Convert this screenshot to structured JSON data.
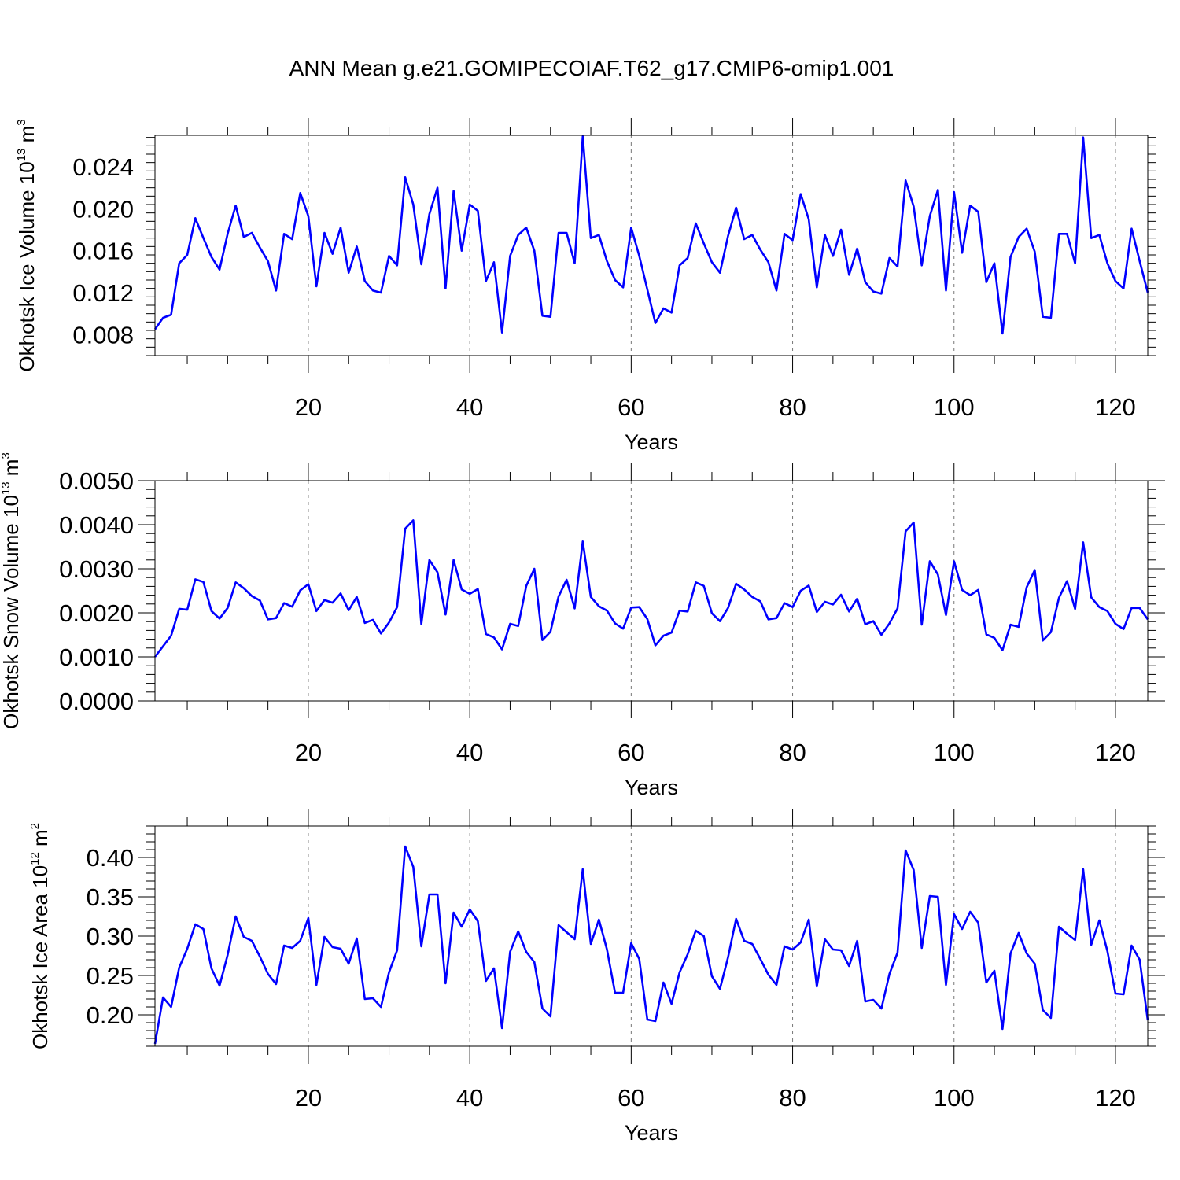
{
  "figure": {
    "title": "ANN Mean g.e21.GOMIPECOIAF.T62_g17.CMIP6-omip1.001",
    "line_color": "#0000ff",
    "grid_color": "#777777"
  },
  "chart_data": [
    {
      "type": "line",
      "title": "ANN Mean g.e21.GOMIPECOIAF.T62_g17.CMIP6-omip1.001",
      "xlabel": "Years",
      "ylabel": {
        "main": "Okhotsk Ice Volume 10",
        "sup": "13",
        "unit": " m",
        "unit_sup": "3"
      },
      "xlim": [
        1,
        124
      ],
      "ylim": [
        0.006,
        0.027
      ],
      "xticks": [
        20,
        40,
        60,
        80,
        100,
        120
      ],
      "xtick_labels": [
        "20",
        "40",
        "60",
        "80",
        "100",
        "120"
      ],
      "yticks": [
        0.008,
        0.012,
        0.016,
        0.02,
        0.024
      ],
      "ytick_labels": [
        "0.008",
        "0.012",
        "0.016",
        "0.020",
        "0.024"
      ],
      "grid": "vertical dashed at major x ticks",
      "x_start": 1,
      "series": [
        {
          "values": [
            0.0085,
            0.0096,
            0.0099,
            0.0148,
            0.0156,
            0.0191,
            0.0172,
            0.0154,
            0.0142,
            0.0176,
            0.0203,
            0.0173,
            0.0177,
            0.0163,
            0.015,
            0.0122,
            0.0176,
            0.0171,
            0.0215,
            0.0193,
            0.0126,
            0.0177,
            0.0157,
            0.0182,
            0.0139,
            0.0164,
            0.0131,
            0.0122,
            0.012,
            0.0155,
            0.0146,
            0.023,
            0.0204,
            0.0147,
            0.0195,
            0.022,
            0.0124,
            0.0217,
            0.016,
            0.0204,
            0.0198,
            0.0131,
            0.0149,
            0.0082,
            0.0155,
            0.0175,
            0.0182,
            0.016,
            0.0098,
            0.0097,
            0.0177,
            0.0177,
            0.0148,
            0.0269,
            0.0172,
            0.0175,
            0.015,
            0.0132,
            0.0125,
            0.0182,
            0.0155,
            0.0123,
            0.0091,
            0.0105,
            0.0101,
            0.0146,
            0.0153,
            0.0186,
            0.0167,
            0.0149,
            0.0139,
            0.0174,
            0.0201,
            0.0171,
            0.0175,
            0.0161,
            0.0149,
            0.0122,
            0.0176,
            0.017,
            0.0214,
            0.019,
            0.0125,
            0.0175,
            0.0155,
            0.018,
            0.0137,
            0.0162,
            0.013,
            0.0121,
            0.0119,
            0.0153,
            0.0145,
            0.0227,
            0.0202,
            0.0146,
            0.0193,
            0.0218,
            0.0122,
            0.0216,
            0.0158,
            0.0203,
            0.0197,
            0.013,
            0.0148,
            0.0081,
            0.0154,
            0.0173,
            0.0181,
            0.0159,
            0.0097,
            0.0096,
            0.0176,
            0.0176,
            0.0148,
            0.0268,
            0.0172,
            0.0175,
            0.0148,
            0.0131,
            0.0124,
            0.0181,
            0.015,
            0.012
          ]
        }
      ]
    },
    {
      "type": "line",
      "title": "",
      "xlabel": "Years",
      "ylabel": {
        "main": "Okhotsk Snow Volume 10",
        "sup": "13",
        "unit": " m",
        "unit_sup": "3"
      },
      "xlim": [
        1,
        124
      ],
      "ylim": [
        0.0,
        0.005
      ],
      "xticks": [
        20,
        40,
        60,
        80,
        100,
        120
      ],
      "xtick_labels": [
        "20",
        "40",
        "60",
        "80",
        "100",
        "120"
      ],
      "yticks": [
        0.0,
        0.001,
        0.002,
        0.003,
        0.004,
        0.005
      ],
      "ytick_labels": [
        "0.0000",
        "0.0010",
        "0.0020",
        "0.0030",
        "0.0040",
        "0.0050"
      ],
      "grid": "vertical dashed at major x ticks",
      "x_start": 1,
      "series": [
        {
          "values": [
            0.001,
            0.00124,
            0.00148,
            0.00209,
            0.00207,
            0.00276,
            0.0027,
            0.00204,
            0.00187,
            0.00211,
            0.00269,
            0.00256,
            0.00238,
            0.00228,
            0.00185,
            0.00188,
            0.00222,
            0.00214,
            0.00251,
            0.00265,
            0.00204,
            0.00229,
            0.00223,
            0.00244,
            0.00206,
            0.00236,
            0.00177,
            0.00184,
            0.00153,
            0.00178,
            0.00213,
            0.00391,
            0.0041,
            0.00174,
            0.0032,
            0.00292,
            0.00196,
            0.0032,
            0.00253,
            0.00243,
            0.00254,
            0.00152,
            0.00144,
            0.00117,
            0.00175,
            0.0017,
            0.00261,
            0.003,
            0.00138,
            0.00157,
            0.00237,
            0.00275,
            0.0021,
            0.00362,
            0.00236,
            0.00215,
            0.00205,
            0.00176,
            0.00164,
            0.00212,
            0.00213,
            0.00186,
            0.00126,
            0.00148,
            0.00155,
            0.00205,
            0.00203,
            0.00269,
            0.00261,
            0.00199,
            0.00181,
            0.00211,
            0.00266,
            0.00253,
            0.00236,
            0.00226,
            0.00185,
            0.00188,
            0.00222,
            0.00213,
            0.0025,
            0.00262,
            0.00202,
            0.00225,
            0.00219,
            0.00241,
            0.00203,
            0.00232,
            0.00174,
            0.00181,
            0.0015,
            0.00176,
            0.0021,
            0.00385,
            0.00405,
            0.00173,
            0.00317,
            0.00287,
            0.00195,
            0.00317,
            0.00252,
            0.0024,
            0.00252,
            0.00151,
            0.00143,
            0.00115,
            0.00173,
            0.00168,
            0.00258,
            0.00297,
            0.00137,
            0.00156,
            0.00234,
            0.00272,
            0.00209,
            0.0036,
            0.00235,
            0.00213,
            0.00204,
            0.00175,
            0.00163,
            0.00211,
            0.00211,
            0.00185
          ]
        }
      ]
    },
    {
      "type": "line",
      "title": "",
      "xlabel": "Years",
      "ylabel": {
        "main": "Okhotsk Ice Area 10",
        "sup": "12",
        "unit": " m",
        "unit_sup": "2"
      },
      "xlim": [
        1,
        124
      ],
      "ylim": [
        0.16,
        0.44
      ],
      "xticks": [
        20,
        40,
        60,
        80,
        100,
        120
      ],
      "xtick_labels": [
        "20",
        "40",
        "60",
        "80",
        "100",
        "120"
      ],
      "yticks": [
        0.2,
        0.25,
        0.3,
        0.35,
        0.4
      ],
      "ytick_labels": [
        "0.20",
        "0.25",
        "0.30",
        "0.35",
        "0.40"
      ],
      "grid": "vertical dashed at major x ticks",
      "x_start": 1,
      "series": [
        {
          "values": [
            0.163,
            0.222,
            0.21,
            0.26,
            0.284,
            0.315,
            0.309,
            0.259,
            0.237,
            0.276,
            0.325,
            0.299,
            0.294,
            0.274,
            0.252,
            0.239,
            0.288,
            0.285,
            0.294,
            0.323,
            0.238,
            0.299,
            0.286,
            0.284,
            0.265,
            0.297,
            0.22,
            0.221,
            0.21,
            0.254,
            0.282,
            0.414,
            0.388,
            0.287,
            0.353,
            0.353,
            0.24,
            0.33,
            0.312,
            0.334,
            0.319,
            0.243,
            0.259,
            0.183,
            0.28,
            0.306,
            0.28,
            0.267,
            0.208,
            0.198,
            0.314,
            0.305,
            0.296,
            0.385,
            0.29,
            0.321,
            0.283,
            0.228,
            0.228,
            0.291,
            0.271,
            0.194,
            0.192,
            0.241,
            0.214,
            0.254,
            0.277,
            0.307,
            0.3,
            0.249,
            0.233,
            0.273,
            0.322,
            0.294,
            0.29,
            0.271,
            0.251,
            0.238,
            0.287,
            0.283,
            0.292,
            0.321,
            0.236,
            0.296,
            0.283,
            0.282,
            0.262,
            0.294,
            0.217,
            0.219,
            0.208,
            0.252,
            0.279,
            0.409,
            0.384,
            0.285,
            0.351,
            0.35,
            0.238,
            0.328,
            0.309,
            0.331,
            0.317,
            0.241,
            0.256,
            0.182,
            0.278,
            0.304,
            0.278,
            0.265,
            0.206,
            0.196,
            0.312,
            0.303,
            0.295,
            0.385,
            0.289,
            0.32,
            0.281,
            0.227,
            0.226,
            0.288,
            0.27,
            0.193
          ]
        }
      ]
    }
  ]
}
